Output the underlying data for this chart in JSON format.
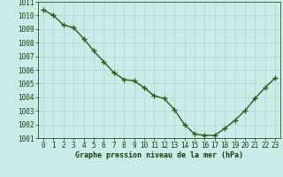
{
  "x": [
    0,
    1,
    2,
    3,
    4,
    5,
    6,
    7,
    8,
    9,
    10,
    11,
    12,
    13,
    14,
    15,
    16,
    17,
    18,
    19,
    20,
    21,
    22,
    23
  ],
  "y": [
    1010.4,
    1010.0,
    1009.3,
    1009.1,
    1008.3,
    1007.4,
    1006.6,
    1005.8,
    1005.3,
    1005.2,
    1004.7,
    1004.1,
    1003.9,
    1003.1,
    1002.0,
    1001.3,
    1001.2,
    1001.2,
    1001.7,
    1002.3,
    1003.0,
    1003.9,
    1004.7,
    1005.4
  ],
  "line_color": "#2d5a1b",
  "marker": "+",
  "bg_color": "#c8ece8",
  "grid_color": "#b0d4cc",
  "xlabel": "Graphe pression niveau de la mer (hPa)",
  "xlabel_color": "#1a3a0a",
  "tick_label_color": "#1a3a0a",
  "ylim": [
    1001,
    1011
  ],
  "xlim": [
    -0.5,
    23.5
  ],
  "yticks": [
    1001,
    1002,
    1003,
    1004,
    1005,
    1006,
    1007,
    1008,
    1009,
    1010,
    1011
  ],
  "xticks": [
    0,
    1,
    2,
    3,
    4,
    5,
    6,
    7,
    8,
    9,
    10,
    11,
    12,
    13,
    14,
    15,
    16,
    17,
    18,
    19,
    20,
    21,
    22,
    23
  ],
  "linewidth": 1.0,
  "markersize": 4,
  "tick_fontsize": 5.5,
  "xlabel_fontsize": 6.0
}
